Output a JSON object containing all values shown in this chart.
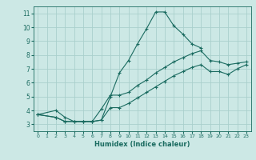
{
  "bg_color": "#cce8e5",
  "grid_color": "#aad0cc",
  "line_color": "#1a6b60",
  "xlabel": "Humidex (Indice chaleur)",
  "xlim": [
    -0.5,
    23.5
  ],
  "ylim": [
    2.5,
    11.5
  ],
  "xticks": [
    0,
    1,
    2,
    3,
    4,
    5,
    6,
    7,
    8,
    9,
    10,
    11,
    12,
    13,
    14,
    15,
    16,
    17,
    18,
    19,
    20,
    21,
    22,
    23
  ],
  "yticks": [
    3,
    4,
    5,
    6,
    7,
    8,
    9,
    10,
    11
  ],
  "line1": {
    "x": [
      0,
      2,
      3,
      4,
      5,
      6,
      7,
      8,
      9,
      10,
      11,
      12,
      13,
      14,
      15,
      16,
      17,
      18
    ],
    "y": [
      3.7,
      4.0,
      3.5,
      3.2,
      3.2,
      3.2,
      3.3,
      5.0,
      6.7,
      7.6,
      8.8,
      9.9,
      11.1,
      11.1,
      10.1,
      9.5,
      8.8,
      8.5
    ]
  },
  "line2": {
    "x": [
      0,
      2,
      3,
      4,
      5,
      6,
      7,
      8,
      9,
      10,
      11,
      12,
      13,
      14,
      15,
      16,
      17,
      18,
      19,
      20,
      21,
      22,
      23
    ],
    "y": [
      3.7,
      3.5,
      3.2,
      3.2,
      3.2,
      3.2,
      4.1,
      5.1,
      5.1,
      5.3,
      5.8,
      6.2,
      6.7,
      7.1,
      7.5,
      7.8,
      8.1,
      8.3,
      7.6,
      7.5,
      7.3,
      7.4,
      7.5
    ]
  },
  "line3": {
    "x": [
      0,
      2,
      3,
      4,
      5,
      6,
      7,
      8,
      9,
      10,
      11,
      12,
      13,
      14,
      15,
      16,
      17,
      18,
      19,
      20,
      21,
      22,
      23
    ],
    "y": [
      3.7,
      3.5,
      3.2,
      3.2,
      3.2,
      3.2,
      3.3,
      4.2,
      4.2,
      4.5,
      4.9,
      5.3,
      5.7,
      6.1,
      6.5,
      6.8,
      7.1,
      7.3,
      6.8,
      6.8,
      6.6,
      7.0,
      7.3
    ]
  }
}
